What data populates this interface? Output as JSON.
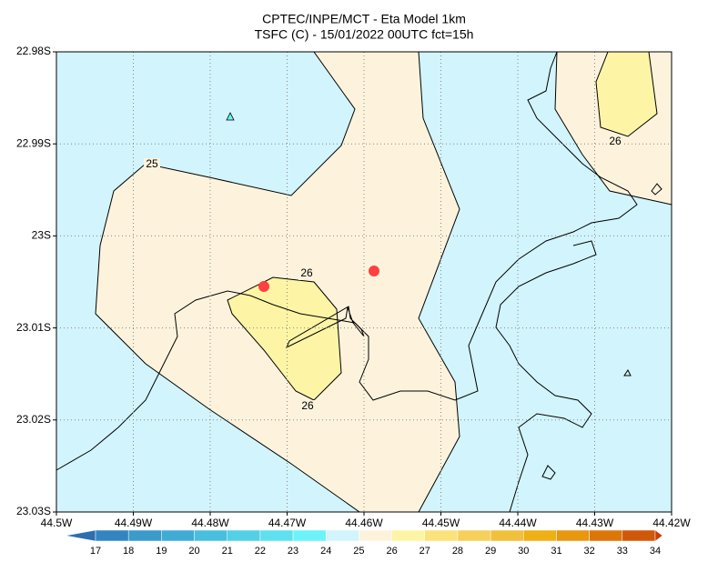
{
  "header": {
    "line1": "CPTEC/INPE/MCT -  Eta Model 1km",
    "line2": "TSFC (C) - 15/01/2022 00UTC fct=15h"
  },
  "map": {
    "lat_ticks": [
      "22.98S",
      "22.99S",
      "23S",
      "23.01S",
      "23.02S",
      "23.03S"
    ],
    "lon_ticks": [
      "44.5W",
      "44.49W",
      "44.48W",
      "44.47W",
      "44.46W",
      "44.45W",
      "44.44W",
      "44.43W",
      "44.42W"
    ],
    "contour_labels": [
      25,
      26,
      26,
      26
    ]
  },
  "colorbar": {
    "labels": [
      17,
      18,
      19,
      20,
      21,
      22,
      23,
      24,
      25,
      26,
      27,
      28,
      29,
      30,
      31,
      32,
      33,
      34
    ],
    "colors": [
      "#2d6fae",
      "#3385bf",
      "#3a9bcb",
      "#40acd5",
      "#48bfde",
      "#52d0e6",
      "#5fe0ef",
      "#6cf3fa",
      "#d2f4fc",
      "#fdf3dd",
      "#fdf5a5",
      "#fbe27a",
      "#f6d05a",
      "#f1c03c",
      "#efb016",
      "#e8970f",
      "#dc7609",
      "#d05808",
      "#c44106"
    ]
  }
}
